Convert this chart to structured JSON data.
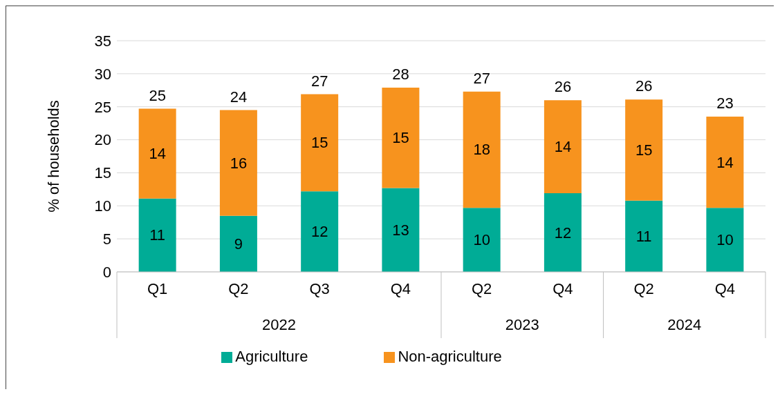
{
  "chart_data": {
    "type": "bar",
    "stacked": true,
    "ylabel": "% of households",
    "categories": [
      "Q1",
      "Q2",
      "Q3",
      "Q4",
      "Q2",
      "Q4",
      "Q2",
      "Q4"
    ],
    "annotations": [
      "2022",
      "2023",
      "2024"
    ],
    "series": [
      {
        "name": "Agriculture",
        "color": "#00ac96",
        "values": [
          11.1,
          8.5,
          12.2,
          12.7,
          9.7,
          11.9,
          10.8,
          9.7
        ],
        "value_labels": [
          "11",
          "9",
          "12",
          "13",
          "10",
          "12",
          "11",
          "10"
        ]
      },
      {
        "name": "Non-agriculture",
        "color": "#f7931e",
        "values": [
          13.6,
          16.0,
          14.7,
          15.2,
          17.6,
          14.1,
          15.3,
          13.8
        ],
        "value_labels": [
          "14",
          "16",
          "15",
          "15",
          "18",
          "14",
          "15",
          "14"
        ]
      }
    ],
    "totals": [
      "25",
      "24",
      "27",
      "28",
      "27",
      "26",
      "26",
      "23"
    ],
    "ylim": [
      0,
      35
    ],
    "yticks": [
      0,
      5,
      10,
      15,
      20,
      25,
      30,
      35
    ],
    "grid": "y",
    "legend": "bottom"
  }
}
